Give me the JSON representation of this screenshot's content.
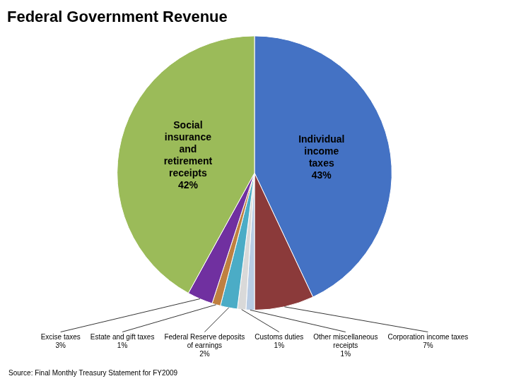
{
  "chart_data": {
    "type": "pie",
    "title": "Federal Government Revenue",
    "categories": [
      "Individual\nincome\ntaxes\n43%",
      "Corporation income taxes\n7%",
      "Other miscellaneous\nreceipts\n1%",
      "Customs duties\n1%",
      "Federal Reserve deposits\nof earnings\n2%",
      "Estate and gift taxes\n1%",
      "Excise taxes\n3%",
      "Social\ninsurance\nand\nretirement\nreceipts\n42%"
    ],
    "values": [
      43,
      7,
      1,
      1,
      2,
      1,
      3,
      42
    ],
    "colors": [
      "#4472C4",
      "#8B3A3A",
      "#B8CCE4",
      "#D9D9D9",
      "#4BACC6",
      "#C08040",
      "#7030A0",
      "#9BBB59"
    ],
    "annotations": [
      "Source: Final Monthly Treasury Statement for FY2009"
    ]
  }
}
